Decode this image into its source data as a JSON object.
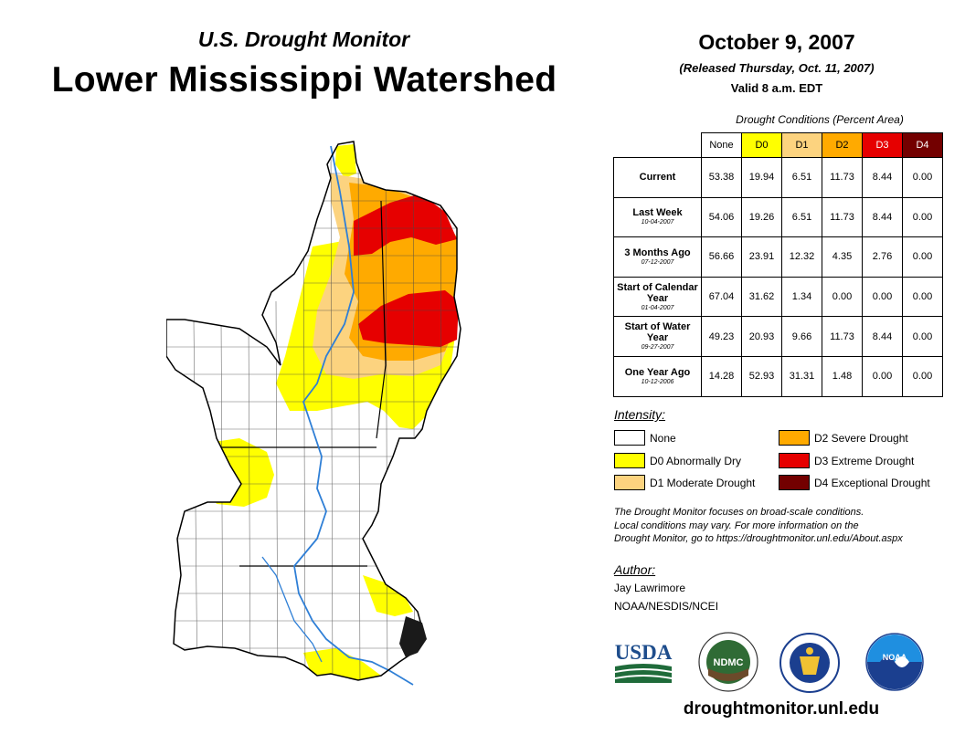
{
  "header": {
    "subtitle": "U.S. Drought Monitor",
    "title": "Lower Mississippi Watershed",
    "date": "October 9, 2007",
    "released": "(Released Thursday, Oct. 11, 2007)",
    "valid": "Valid 8 a.m. EDT"
  },
  "table": {
    "caption": "Drought Conditions (Percent Area)",
    "columns": [
      {
        "label": "None",
        "color": "#ffffff",
        "text_color": "#000000"
      },
      {
        "label": "D0",
        "color": "#ffff00",
        "text_color": "#000000"
      },
      {
        "label": "D1",
        "color": "#fcd37f",
        "text_color": "#000000"
      },
      {
        "label": "D2",
        "color": "#ffaa00",
        "text_color": "#000000"
      },
      {
        "label": "D3",
        "color": "#e60000",
        "text_color": "#ffffff"
      },
      {
        "label": "D4",
        "color": "#730000",
        "text_color": "#ffffff"
      }
    ],
    "rows": [
      {
        "label": "Current",
        "sub": "",
        "values": [
          "53.38",
          "19.94",
          "6.51",
          "11.73",
          "8.44",
          "0.00"
        ]
      },
      {
        "label": "Last Week",
        "sub": "10-04-2007",
        "values": [
          "54.06",
          "19.26",
          "6.51",
          "11.73",
          "8.44",
          "0.00"
        ]
      },
      {
        "label": "3 Months Ago",
        "sub": "07-12-2007",
        "values": [
          "56.66",
          "23.91",
          "12.32",
          "4.35",
          "2.76",
          "0.00"
        ]
      },
      {
        "label": "Start of Calendar Year",
        "sub": "01-04-2007",
        "values": [
          "67.04",
          "31.62",
          "1.34",
          "0.00",
          "0.00",
          "0.00"
        ]
      },
      {
        "label": "Start of Water Year",
        "sub": "09-27-2007",
        "values": [
          "49.23",
          "20.93",
          "9.66",
          "11.73",
          "8.44",
          "0.00"
        ]
      },
      {
        "label": "One Year Ago",
        "sub": "10-12-2006",
        "values": [
          "14.28",
          "52.93",
          "31.31",
          "1.48",
          "0.00",
          "0.00"
        ]
      }
    ]
  },
  "legend": {
    "title": "Intensity:",
    "items": [
      {
        "label": "None",
        "color": "#ffffff"
      },
      {
        "label": "D0 Abnormally Dry",
        "color": "#ffff00"
      },
      {
        "label": "D1 Moderate Drought",
        "color": "#fcd37f"
      },
      {
        "label": "D2 Severe Drought",
        "color": "#ffaa00"
      },
      {
        "label": "D3 Extreme Drought",
        "color": "#e60000"
      },
      {
        "label": "D4 Exceptional Drought",
        "color": "#730000"
      }
    ]
  },
  "note": {
    "line1": "The Drought Monitor focuses on broad-scale conditions.",
    "line2": "Local conditions may vary. For more information on the",
    "line3": "Drought Monitor, go to https://droughtmonitor.unl.edu/About.aspx"
  },
  "author": {
    "label": "Author:",
    "name": "Jay Lawrimore",
    "org": "NOAA/NESDIS/NCEI"
  },
  "logos": {
    "usda": "USDA",
    "ndmc": "NDMC",
    "noaa": "NOAA"
  },
  "website": "droughtmonitor.unl.edu"
}
